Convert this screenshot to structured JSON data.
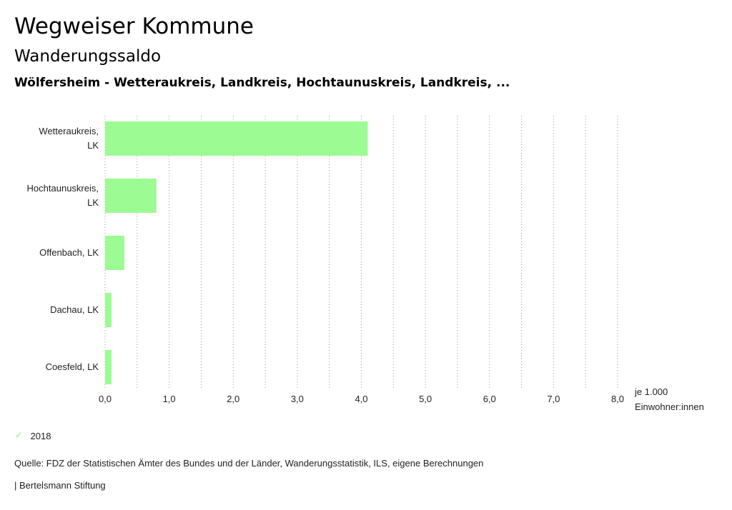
{
  "header": {
    "title": "Wegweiser Kommune",
    "subtitle": "Wanderungssaldo",
    "selection": "Wölfersheim - Wetteraukreis, Landkreis, Hochtaunuskreis, Landkreis, ..."
  },
  "chart_data": {
    "type": "bar",
    "orientation": "horizontal",
    "categories": [
      [
        "Wetteraukreis,",
        "LK"
      ],
      [
        "Hochtaunuskreis,",
        "LK"
      ],
      [
        "Offenbach, LK"
      ],
      [
        "Dachau, LK"
      ],
      [
        "Coesfeld, LK"
      ]
    ],
    "series": [
      {
        "name": "2018",
        "values": [
          4.1,
          0.8,
          0.3,
          0.1,
          0.1
        ],
        "color": "#9cfb93"
      }
    ],
    "xlim": [
      0,
      8
    ],
    "xticks": [
      "0,0",
      "1,0",
      "2,0",
      "3,0",
      "4,0",
      "5,0",
      "6,0",
      "7,0",
      "8,0"
    ],
    "xlabel": [
      "je 1.000",
      "Einwohner:innen"
    ],
    "grid": true,
    "legend_position": "bottom-left"
  },
  "legend": {
    "icon": "check-icon",
    "label": "2018"
  },
  "footer": {
    "source": "Quelle: FDZ der Statistischen Ämter des Bundes und der Länder, Wanderungsstatistik, ILS, eigene Berechnungen",
    "brand": "| Bertelsmann Stiftung"
  }
}
